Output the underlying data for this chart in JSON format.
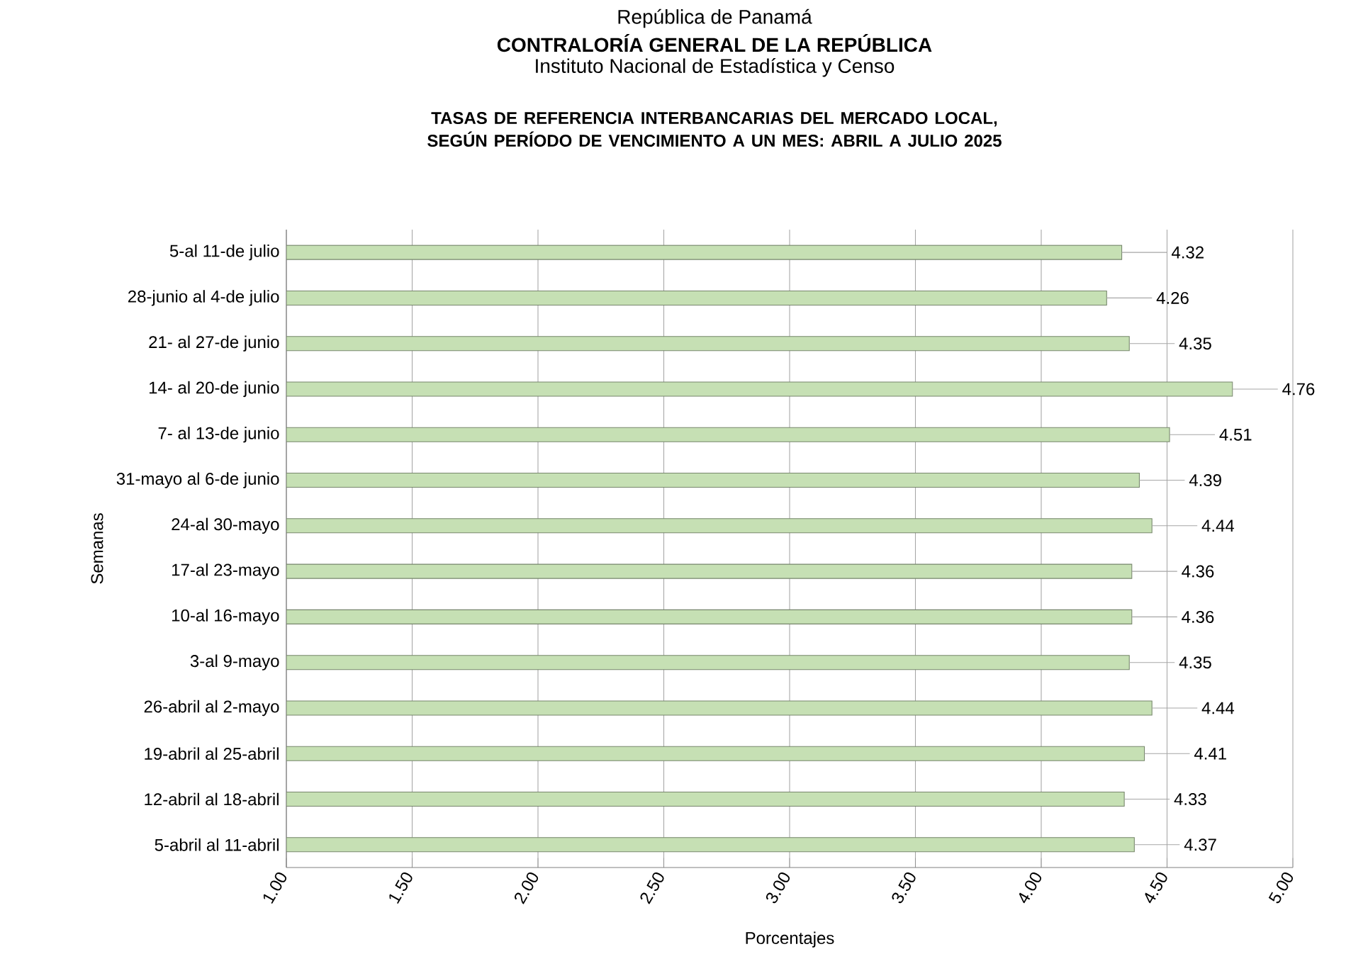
{
  "chart_data": {
    "type": "bar",
    "orientation": "horizontal",
    "title": "TASAS DE REFERENCIA INTERBANCARIAS DEL MERCADO LOCAL, SEGÚN PERÍODO DE VENCIMIENTO A UN MES: ABRIL A JULIO 2025",
    "annotations": [
      "República de Panamá",
      "CONTRALORÍA GENERAL DE LA REPÚBLICA",
      "Instituto Nacional de Estadística y Censo"
    ],
    "xlabel": "Porcentajes",
    "ylabel": "Semanas",
    "categories": [
      "5-al 11-de julio",
      "28-junio al 4-de julio",
      "21- al 27-de junio",
      "14- al 20-de junio",
      "7- al 13-de junio",
      "31-mayo al 6-de junio",
      "24-al 30-mayo",
      "17-al 23-mayo",
      "10-al 16-mayo",
      "3-al 9-mayo",
      "26-abril al 2-mayo",
      "19-abril al 25-abril",
      "12-abril al 18-abril",
      "5-abril al 11-abril"
    ],
    "values": [
      4.32,
      4.26,
      4.35,
      4.76,
      4.51,
      4.39,
      4.44,
      4.36,
      4.36,
      4.35,
      4.44,
      4.41,
      4.33,
      4.37
    ],
    "color": "#c6e0b4",
    "xlim": [
      1,
      5
    ],
    "xticks": [
      {
        "value": 1,
        "label": "1.00"
      },
      {
        "value": 1.5,
        "label": "1.50"
      },
      {
        "value": 2,
        "label": "2.00"
      },
      {
        "value": 2.5,
        "label": "2.50"
      },
      {
        "value": 3,
        "label": "3.00"
      },
      {
        "value": 3.5,
        "label": "3.50"
      },
      {
        "value": 4,
        "label": "4.00"
      },
      {
        "value": 4.5,
        "label": "4.50"
      },
      {
        "value": 5,
        "label": "5.00"
      }
    ],
    "grid": "x",
    "data_labels": true
  }
}
